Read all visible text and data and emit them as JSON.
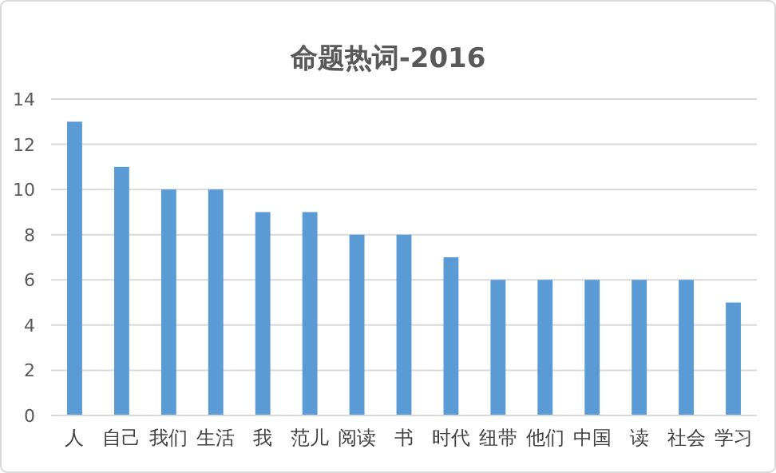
{
  "chart_data": {
    "type": "bar",
    "title": "命题热词-2016",
    "categories": [
      "人",
      "自己",
      "我们",
      "生活",
      "我",
      "范儿",
      "阅读",
      "书",
      "时代",
      "纽带",
      "他们",
      "中国",
      "读",
      "社会",
      "学习"
    ],
    "values": [
      13,
      11,
      10,
      10,
      9,
      9,
      8,
      8,
      7,
      6,
      6,
      6,
      6,
      6,
      5
    ],
    "color": "#5b9bd5",
    "ylim": [
      0,
      14
    ],
    "yticks": [
      0,
      2,
      4,
      6,
      8,
      10,
      12,
      14
    ],
    "grid": "y"
  }
}
